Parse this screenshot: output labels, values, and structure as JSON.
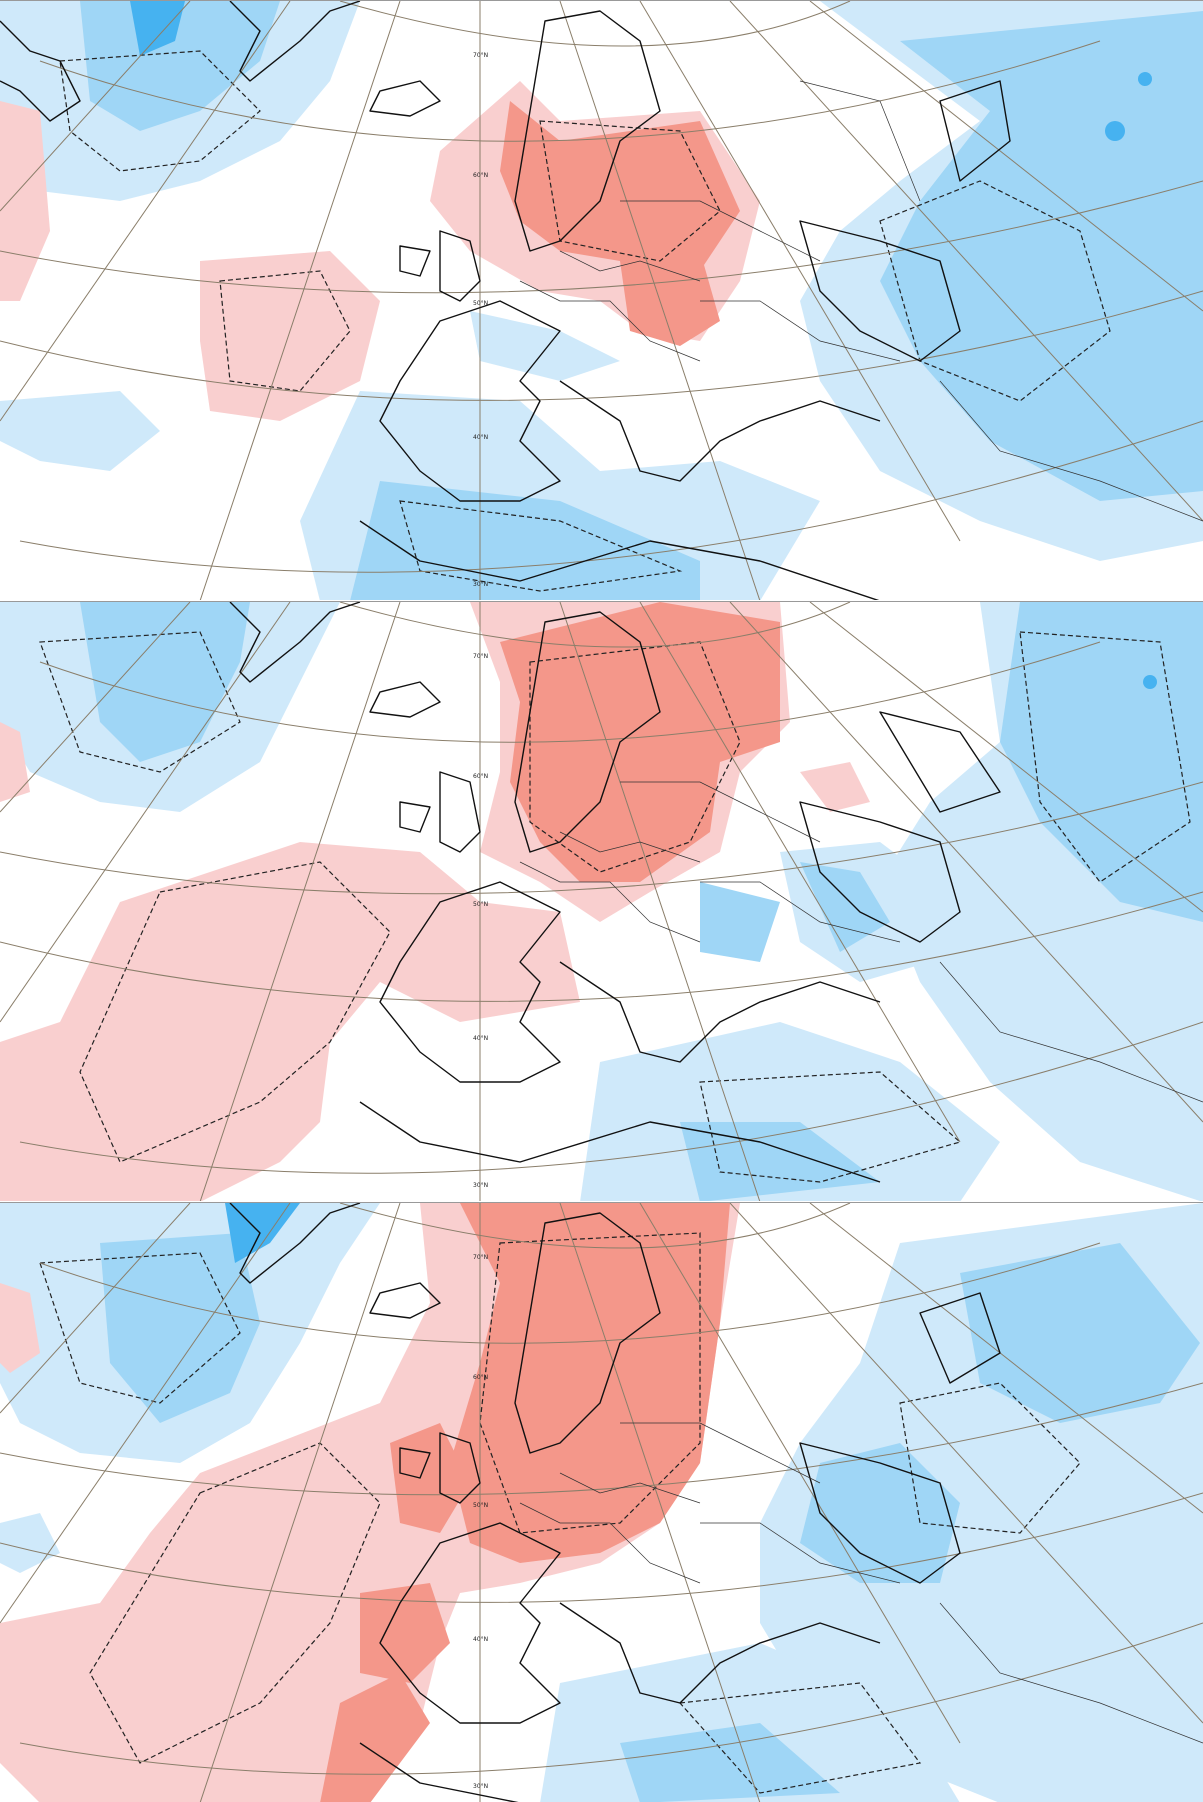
{
  "colors": {
    "warm_light": "#f9cfcf",
    "warm_strong": "#f4978a",
    "cold_light": "#cfe9fa",
    "cold_mid": "#9fd6f6",
    "cold_strong": "#46b2f0",
    "grid": "#8a7e6a",
    "coast": "#111111"
  },
  "latitude_labels": [
    "70°N",
    "60°N",
    "50°N",
    "40°N",
    "30°N"
  ],
  "panels": [
    {
      "id": "panel-1"
    },
    {
      "id": "panel-2"
    },
    {
      "id": "panel-3"
    }
  ]
}
